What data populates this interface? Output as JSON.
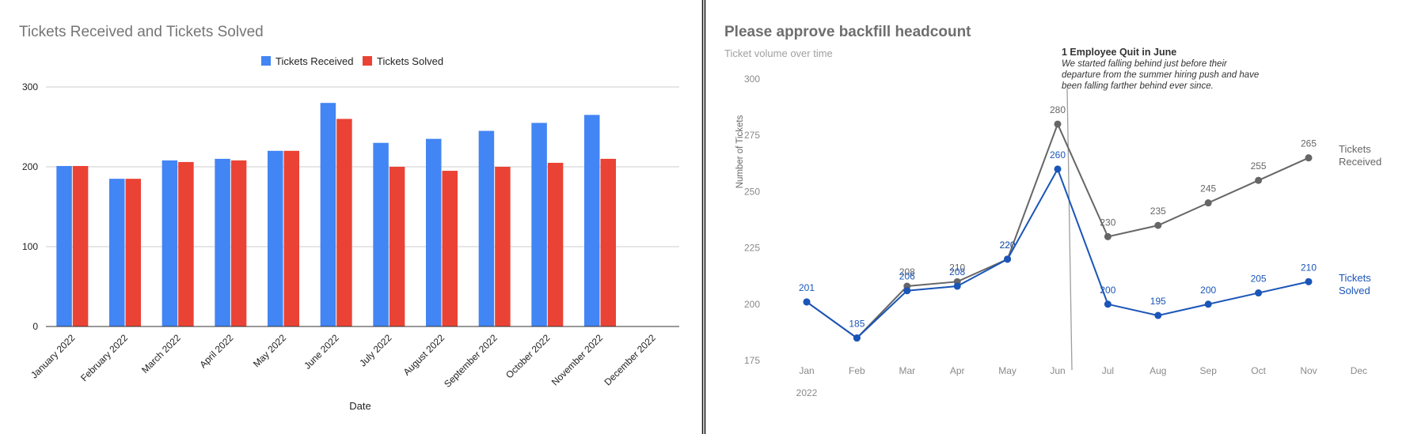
{
  "colors": {
    "received_bar": "#4285f4",
    "solved_bar": "#ea4335",
    "received_line": "#666666",
    "solved_line": "#1a55b8",
    "grid": "#cccccc",
    "divider": "#111111"
  },
  "chart_data": [
    {
      "type": "bar",
      "title": "Tickets Received and Tickets Solved",
      "xlabel": "Date",
      "ylabel": "",
      "ylim": [
        0,
        300
      ],
      "yticks": [
        0,
        100,
        200,
        300
      ],
      "grid": true,
      "legend_position": "top",
      "categories": [
        "January 2022",
        "February 2022",
        "March 2022",
        "April 2022",
        "May 2022",
        "June 2022",
        "July 2022",
        "August 2022",
        "September 2022",
        "October 2022",
        "November 2022",
        "December 2022"
      ],
      "series": [
        {
          "name": "Tickets Received",
          "values": [
            201,
            185,
            208,
            210,
            220,
            280,
            230,
            235,
            245,
            255,
            265,
            null
          ]
        },
        {
          "name": "Tickets Solved",
          "values": [
            201,
            185,
            206,
            208,
            220,
            260,
            200,
            195,
            200,
            205,
            210,
            null
          ]
        }
      ]
    },
    {
      "type": "line",
      "title": "Please approve backfill headcount",
      "subtitle": "Ticket volume over time",
      "xlabel": "",
      "ylabel": "Number of Tickets",
      "ylim": [
        175,
        300
      ],
      "yticks": [
        175,
        200,
        225,
        250,
        275,
        300
      ],
      "grid": false,
      "categories": [
        "Jan",
        "Feb",
        "Mar",
        "Apr",
        "May",
        "Jun",
        "Jul",
        "Aug",
        "Sep",
        "Oct",
        "Nov",
        "Dec"
      ],
      "year_label": "2022",
      "series": [
        {
          "name": "Tickets Received",
          "values": [
            201,
            185,
            208,
            210,
            220,
            280,
            230,
            235,
            245,
            255,
            265,
            null
          ],
          "label_lines": [
            "Tickets",
            "Received"
          ]
        },
        {
          "name": "Tickets Solved",
          "values": [
            201,
            185,
            206,
            208,
            220,
            260,
            200,
            195,
            200,
            205,
            210,
            null
          ],
          "label_lines": [
            "Tickets",
            "Solved"
          ]
        }
      ],
      "annotation": {
        "title": "1 Employee Quit in June",
        "lines": [
          "We started falling behind just before their",
          "departure from the summer hiring push and have",
          "been falling farther behind ever since."
        ]
      }
    }
  ]
}
